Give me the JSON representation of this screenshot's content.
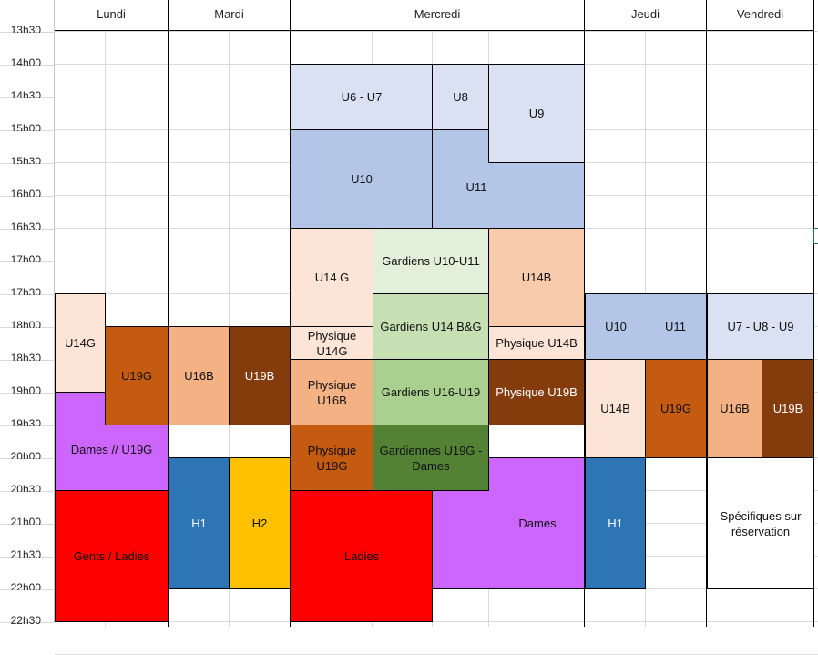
{
  "days": [
    "Lundi",
    "Mardi",
    "Mercredi",
    "Jeudi",
    "Vendredi"
  ],
  "times": [
    "13h30",
    "14h00",
    "14h30",
    "15h00",
    "15h30",
    "16h00",
    "16h30",
    "17h00",
    "17h30",
    "18h00",
    "18h30",
    "19h00",
    "19h30",
    "20h00",
    "20h30",
    "21h00",
    "21h30",
    "22h00",
    "22h30"
  ],
  "colors": {
    "lightblue": "#d9e1f2",
    "blue": "#b4c6e7",
    "peach": "#fce4d6",
    "salmon": "#f4b183",
    "rust": "#c55a11",
    "brown": "#843c0c",
    "lightgreen": "#e2efda",
    "green": "#c6e0b4",
    "midgreen": "#a9d08e",
    "darkgreen": "#548235",
    "violet": "#cc66ff",
    "red": "#ff0000",
    "navy": "#2e75b6",
    "gold": "#ffc000",
    "white": "#ffffff"
  },
  "blocks": {
    "mer_u6u7": "U6 - U7",
    "mer_u8": "U8",
    "mer_u9": "U9",
    "mer_u10": "U10",
    "mer_u11": "U11",
    "mer_u14g": "U14 G",
    "mer_gard_u10u11": "Gardiens U10-U11",
    "mer_u14b": "U14B",
    "mer_gard_u14": "Gardiens U14 B&G",
    "mer_phys_u14g": "Physique U14G",
    "mer_phys_u14b": "Physique U14B",
    "mer_phys_u16b": "Physique U16B",
    "mer_gard_u16u19": "Gardiens U16-U19",
    "mer_phys_u19b": "Physique U19B",
    "mer_phys_u19g": "Physique U19G",
    "mer_gard_u19g_dames": "Gardiennes U19G - Dames",
    "mer_ladies": "Ladies",
    "mer_dames": "Dames",
    "lun_u14g": "U14G",
    "lun_u19g": "U19G",
    "lun_dames_u19g": "Dames // U19G",
    "lun_gents": "Gents / Ladies",
    "mar_u16b": "U16B",
    "mar_u19b": "U19B",
    "mar_h1": "H1",
    "mar_h2": "H2",
    "jeu_u10": "U10",
    "jeu_u11": "U11",
    "jeu_u14b": "U14B",
    "jeu_u19g": "U19G",
    "jeu_h1": "H1",
    "ven_u7u9": "U7 - U8 - U9",
    "ven_u16b": "U16B",
    "ven_u19b": "U19B",
    "ven_specifiques": "Spécifiques sur réservation"
  }
}
